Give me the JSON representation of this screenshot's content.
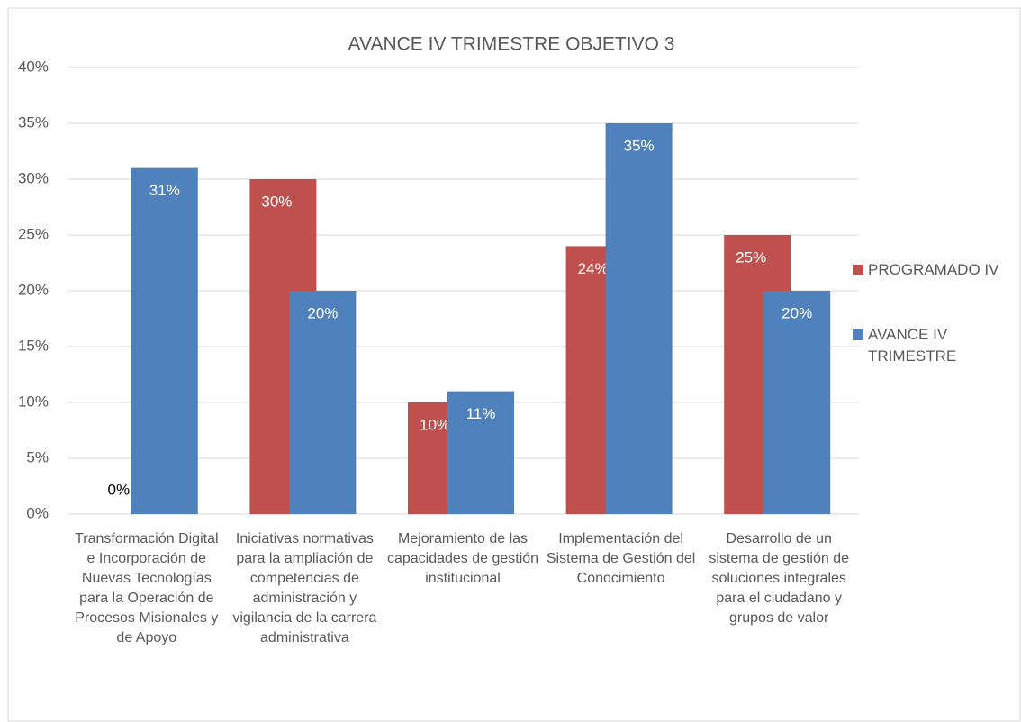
{
  "chart_data": {
    "type": "bar",
    "title": "AVANCE  IV TRIMESTRE OBJETIVO 3",
    "categories": [
      "Transformación Digital e Incorporación de Nuevas Tecnologías para la Operación de Procesos Misionales y de Apoyo",
      "Iniciativas normativas para la ampliación de competencias de administración y vigilancia de la carrera administrativa",
      "Mejoramiento de las capacidades de gestión institucional",
      "Implementación del Sistema de Gestión del Conocimiento",
      "Desarrollo de un sistema de gestión de soluciones integrales para el ciudadano y grupos de valor"
    ],
    "series": [
      {
        "name": "PROGRAMADO IV",
        "color": "#c0504d",
        "values": [
          0,
          30,
          10,
          24,
          25
        ],
        "value_labels": [
          "0%",
          "30%",
          "10%",
          "24%",
          "25%"
        ]
      },
      {
        "name": "AVANCE IV TRIMESTRE",
        "color": "#4f81bd",
        "values": [
          31,
          20,
          11,
          35,
          20
        ],
        "value_labels": [
          "31%",
          "20%",
          "11%",
          "35%",
          "20%"
        ]
      }
    ],
    "ylim": [
      0,
      40
    ],
    "yticks": [
      {
        "value": 0,
        "label": "0%"
      },
      {
        "value": 5,
        "label": "5%"
      },
      {
        "value": 10,
        "label": "10%"
      },
      {
        "value": 15,
        "label": "15%"
      },
      {
        "value": 20,
        "label": "20%"
      },
      {
        "value": 25,
        "label": "25%"
      },
      {
        "value": 30,
        "label": "30%"
      },
      {
        "value": 35,
        "label": "35%"
      },
      {
        "value": 40,
        "label": "40%"
      }
    ],
    "grid": true,
    "legend": "right"
  }
}
